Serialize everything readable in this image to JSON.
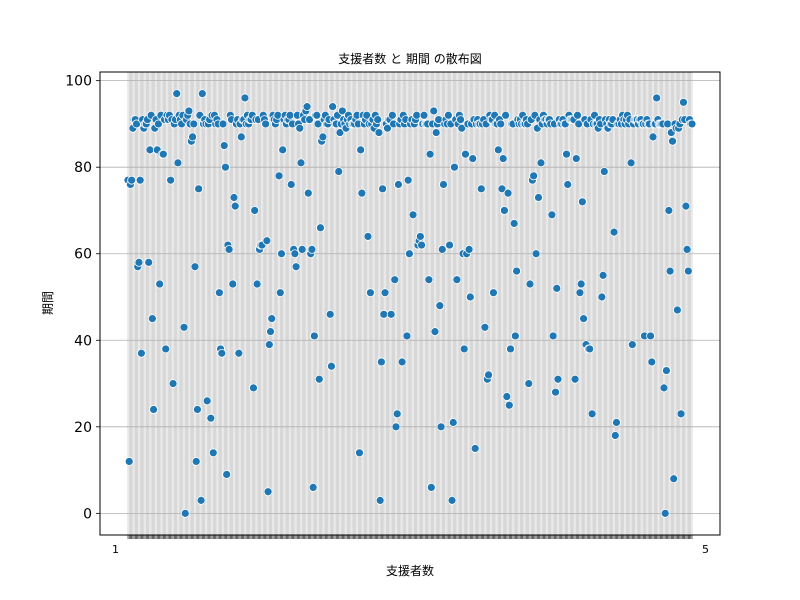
{
  "chart_data": {
    "type": "scatter",
    "title": "支援者数 と 期間 の散布図",
    "xlabel": "支援者数",
    "ylabel": "期間",
    "ylim": [
      -5,
      102
    ],
    "yticks": [
      0,
      20,
      40,
      60,
      80,
      100
    ],
    "grid": true,
    "x_axis": "categorical",
    "x_first_tick_label": "1",
    "x_last_tick_label": "5",
    "marker_color": "#1f77b4",
    "marker_edge": "#ffffff",
    "values": [
      77,
      12,
      76,
      77,
      89,
      91,
      91,
      90,
      57,
      58,
      77,
      37,
      91,
      89,
      90,
      90,
      91,
      58,
      84,
      92,
      45,
      24,
      89,
      91,
      84,
      90,
      53,
      92,
      83,
      83,
      91,
      38,
      92,
      91,
      92,
      77,
      91,
      30,
      90,
      91,
      97,
      81,
      92,
      91,
      90,
      92,
      43,
      0,
      91,
      92,
      93,
      90,
      86,
      87,
      90,
      57,
      12,
      24,
      75,
      92,
      3,
      97,
      90,
      91,
      90,
      26,
      90,
      91,
      22,
      92,
      14,
      92,
      90,
      91,
      90,
      51,
      38,
      37,
      90,
      85,
      80,
      9,
      62,
      61,
      92,
      91,
      53,
      73,
      71,
      90,
      91,
      37,
      90,
      87,
      91,
      91,
      96,
      90,
      92,
      90,
      91,
      91,
      92,
      29,
      70,
      91,
      53,
      91,
      61,
      62,
      62,
      92,
      91,
      90,
      63,
      5,
      39,
      42,
      45,
      92,
      91,
      90,
      91,
      92,
      78,
      51,
      60,
      84,
      91,
      92,
      90,
      91,
      91,
      92,
      76,
      90,
      61,
      60,
      57,
      92,
      90,
      89,
      81,
      61,
      92,
      91,
      93,
      94,
      74,
      91,
      60,
      61,
      6,
      41,
      92,
      92,
      90,
      31,
      66,
      86,
      87,
      91,
      92,
      90,
      90,
      91,
      46,
      34,
      94,
      91,
      90,
      90,
      92,
      79,
      88,
      90,
      93,
      91,
      90,
      89,
      91,
      92,
      90,
      91,
      90,
      90,
      90,
      91,
      92,
      90,
      14,
      84,
      74,
      92,
      90,
      91,
      92,
      64,
      90,
      51,
      90,
      91,
      89,
      92,
      90,
      91,
      88,
      3,
      35,
      75,
      46,
      51,
      90,
      89,
      91,
      91,
      46,
      92,
      90,
      54,
      20,
      23,
      76,
      90,
      91,
      35,
      92,
      90,
      91,
      41,
      77,
      60,
      90,
      91,
      69,
      90,
      91,
      92,
      62,
      63,
      64,
      62,
      90,
      92,
      90,
      90,
      90,
      54,
      83,
      6,
      90,
      93,
      42,
      88,
      90,
      91,
      48,
      20,
      61,
      76,
      90,
      91,
      90,
      92,
      62,
      90,
      3,
      21,
      80,
      91,
      54,
      90,
      92,
      91,
      89,
      60,
      38,
      83,
      60,
      90,
      61,
      50,
      90,
      82,
      91,
      15,
      90,
      91,
      90,
      90,
      75,
      90,
      91,
      43,
      90,
      31,
      32,
      92,
      91,
      91,
      51,
      92,
      90,
      90,
      84,
      91,
      90,
      75,
      82,
      70,
      92,
      27,
      74,
      25,
      38,
      90,
      90,
      67,
      41,
      56,
      91,
      90,
      91,
      90,
      92,
      90,
      90,
      91,
      90,
      30,
      53,
      91,
      77,
      78,
      92,
      60,
      89,
      73,
      91,
      81,
      90,
      92,
      91,
      91,
      90,
      91,
      91,
      90,
      69,
      41,
      90,
      28,
      52,
      31,
      91,
      90,
      90,
      91,
      90,
      90,
      83,
      76,
      92,
      91,
      91,
      91,
      91,
      31,
      82,
      92,
      90,
      51,
      53,
      72,
      45,
      91,
      39,
      90,
      38,
      38,
      91,
      23,
      90,
      92,
      90,
      90,
      89,
      91,
      90,
      50,
      55,
      79,
      91,
      90,
      89,
      91,
      90,
      90,
      91,
      65,
      18,
      21,
      90,
      90,
      91,
      90,
      92,
      91,
      90,
      91,
      92,
      90,
      91,
      81,
      39,
      90,
      91,
      91,
      91,
      90,
      91,
      91,
      90,
      90,
      41,
      90,
      91,
      90,
      90,
      41,
      35,
      87,
      90,
      90,
      96,
      91,
      90,
      90,
      90,
      90,
      29,
      0,
      33,
      90,
      70,
      56,
      88,
      86,
      8,
      90,
      89,
      47,
      89,
      90,
      23,
      91,
      95,
      91,
      71,
      61,
      56,
      91,
      90,
      90
    ]
  }
}
